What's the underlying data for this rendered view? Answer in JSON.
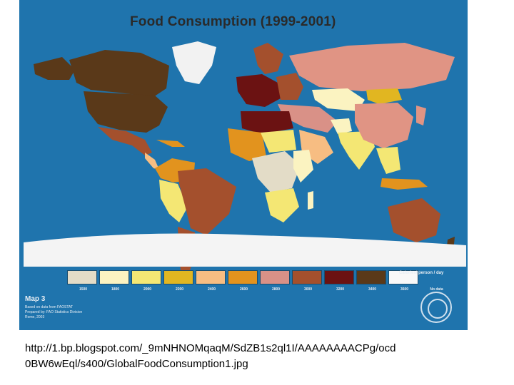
{
  "map": {
    "title": "Food Consumption (1999-2001)",
    "legend": {
      "units_label": "Calories/ person / day",
      "ticks": [
        "1500",
        "1800",
        "2000",
        "2200",
        "2400",
        "2600",
        "2800",
        "3000",
        "3200",
        "3400",
        "3600",
        "No data"
      ],
      "colors": [
        "#e3dcc7",
        "#fbf3c1",
        "#f4e774",
        "#e1b621",
        "#f7bd82",
        "#e2931e",
        "#d99187",
        "#a4502d",
        "#6b1212",
        "#5a3919",
        "#f8f8f8"
      ]
    },
    "info": {
      "number": "Map 3",
      "notes": [
        "Based on data from FAOSTAT",
        "Prepared by: FAO Statistics Division",
        "Rome, 2003"
      ]
    },
    "logo": "fao-logo-icon",
    "colors": {
      "ocean": "#1f74ad",
      "north_america": "#5a3919",
      "russia": "#e09484",
      "brazil": "#a4502d"
    }
  },
  "source": {
    "line1": "http://1.bp.blogspot.com/_9mNHNOMqaqM/SdZB1s2ql1I/AAAAAAAACPg/ocd",
    "line2": "0BW6wEql/s400/GlobalFoodConsumption1.jpg"
  }
}
